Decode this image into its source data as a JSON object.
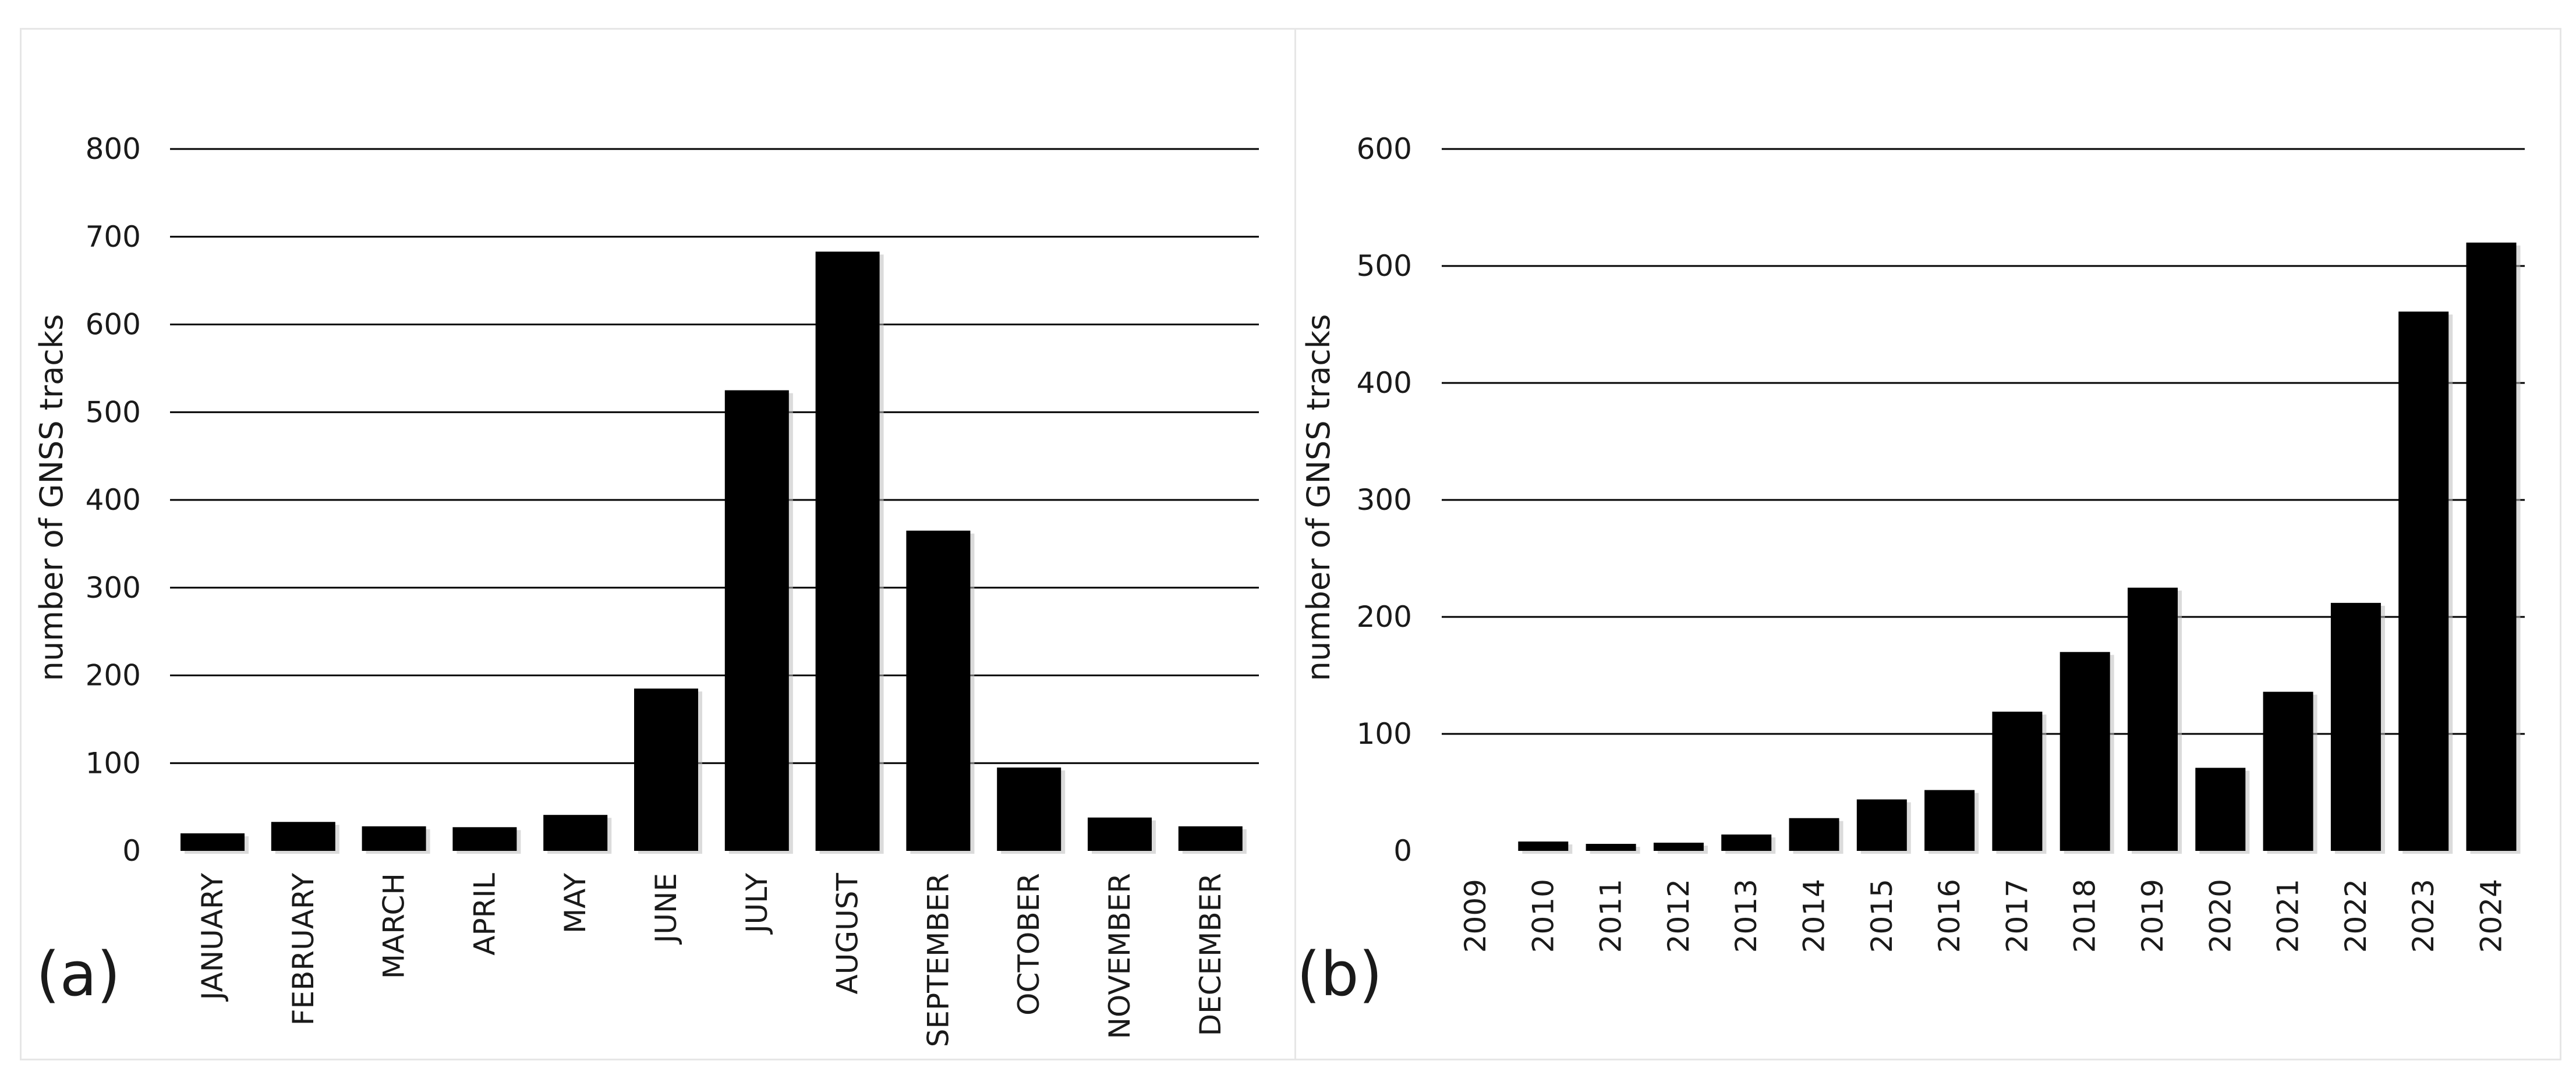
{
  "chart_data": [
    {
      "type": "bar",
      "panel_label": "(a)",
      "ylabel": "number of GNSS tracks",
      "ylim": [
        0,
        800
      ],
      "yticks": [
        0,
        100,
        200,
        300,
        400,
        500,
        600,
        700,
        800
      ],
      "grid": true,
      "bar_color": "#000000",
      "categories": [
        "JANUARY",
        "FEBRUARY",
        "MARCH",
        "APRIL",
        "MAY",
        "JUNE",
        "JULY",
        "AUGUST",
        "SEPTEMBER",
        "OCTOBER",
        "NOVEMBER",
        "DECEMBER"
      ],
      "values": [
        20,
        33,
        28,
        27,
        41,
        185,
        525,
        683,
        365,
        95,
        38,
        28
      ]
    },
    {
      "type": "bar",
      "panel_label": "(b)",
      "ylabel": "number of GNSS tracks",
      "ylim": [
        0,
        600
      ],
      "yticks": [
        0,
        100,
        200,
        300,
        400,
        500,
        600
      ],
      "grid": true,
      "bar_color": "#000000",
      "categories": [
        "2009",
        "2010",
        "2011",
        "2012",
        "2013",
        "2014",
        "2015",
        "2016",
        "2017",
        "2018",
        "2019",
        "2020",
        "2021",
        "2022",
        "2023",
        "2024"
      ],
      "values": [
        0,
        8,
        6,
        7,
        14,
        28,
        44,
        52,
        119,
        170,
        225,
        71,
        136,
        212,
        461,
        520
      ]
    }
  ]
}
